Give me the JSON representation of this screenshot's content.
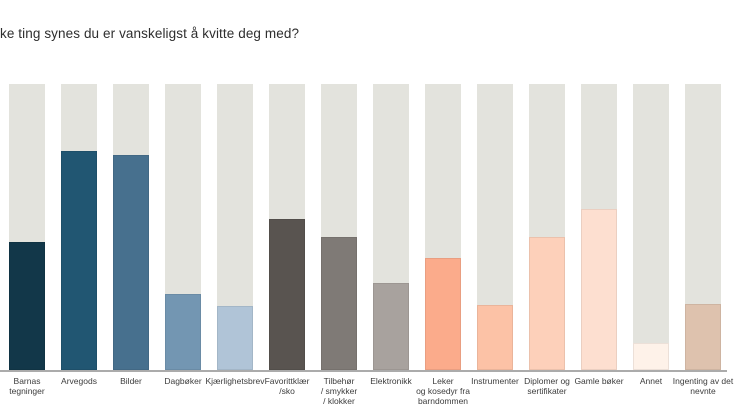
{
  "title": "ke ting synes du er vanskeligst å kvitte deg med?",
  "chart_data": {
    "type": "bar",
    "title": "ke ting synes du er vanskeligst å kvitte deg med?",
    "xlabel": "",
    "ylabel": "",
    "ylim": [
      0,
      100
    ],
    "grid": false,
    "legend": "none",
    "note": "each category shown as filled portion of a full-height light-gray track; no y-axis tick labels visible, values estimated as % of track height",
    "track_color": "#e3e3dd",
    "axis_line_color": "#ababab",
    "categories": [
      "Barnas tegninger",
      "Arvegods",
      "Bilder",
      "Dagbøker",
      "Kjærlighetsbrev",
      "Favorittklær /sko",
      "Tilbehør / smykker / klokker",
      "Elektronikk",
      "Leker og kosedyr fra barndommen",
      "Instrumenter",
      "Diplomer og sertifikater",
      "Gamle bøker",
      "Annet",
      "Ingenting av det nevnte"
    ],
    "values": [
      44.8,
      76.6,
      75.2,
      26.6,
      22.4,
      52.8,
      46.5,
      30.4,
      39.2,
      22.7,
      46.5,
      56.3,
      9.4,
      23.1
    ],
    "bar_colors": [
      "#123749",
      "#215672",
      "#47708e",
      "#7396b2",
      "#b0c4d7",
      "#595450",
      "#7f7a76",
      "#a8a29e",
      "#fbab8b",
      "#fcc2a6",
      "#fdd0ba",
      "#fddfd0",
      "#fef2e9",
      "#dec2ae"
    ],
    "label_lines": [
      "Barnas\ntegninger",
      "Arvegods",
      "Bilder",
      "Dagbøker",
      "Kjærlighetsbrev",
      "Favorittklær\n/sko",
      "Tilbehør\n/ smykker\n/ klokker",
      "Elektronikk",
      "Leker\nog kosedyr fra\nbarndommen",
      "Instrumenter",
      "Diplomer og\nsertifikater",
      "Gamle bøker",
      "Annet",
      "Ingenting av det\nnevnte"
    ]
  }
}
